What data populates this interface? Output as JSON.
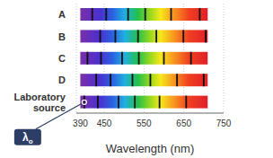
{
  "chart_data": {
    "type": "spectrum",
    "orientation": "horizontal",
    "categories": [
      "A",
      "B",
      "C",
      "D",
      "Laboratory source"
    ],
    "spectrum_range": [
      390,
      710
    ],
    "lines": [
      [
        420,
        455,
        510,
        553,
        618,
        690
      ],
      [
        440,
        478,
        535,
        581,
        649,
        705
      ],
      [
        408,
        442,
        495,
        537,
        600,
        668
      ],
      [
        430,
        466,
        521,
        566,
        633,
        700
      ],
      [
        400,
        434,
        486,
        527,
        589,
        656
      ]
    ],
    "xlim": [
      380,
      750
    ],
    "xticks": [
      390,
      450,
      550,
      650,
      750
    ],
    "xlabel": "Wavelength (nm)",
    "grid": true,
    "annotation": {
      "text": "λo",
      "x": 400,
      "category": "Laboratory source"
    }
  }
}
